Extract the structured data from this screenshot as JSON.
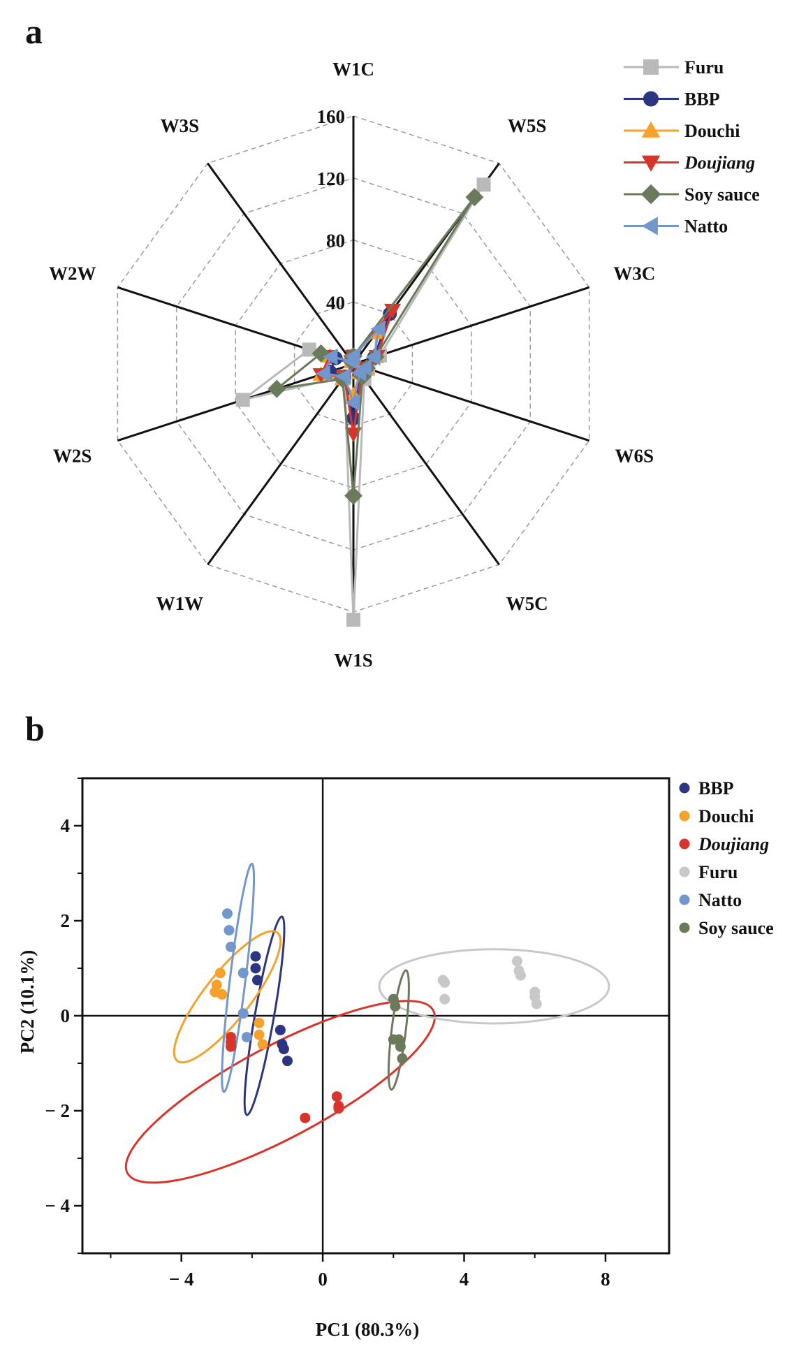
{
  "panel_a": {
    "label": "a"
  },
  "panel_b": {
    "label": "b"
  },
  "chart_data": [
    {
      "type": "radar",
      "axes": [
        "W1C",
        "W5S",
        "W3C",
        "W6S",
        "W5C",
        "W1S",
        "W1W",
        "W2S",
        "W2W",
        "W3S"
      ],
      "r_ticks": [
        40,
        80,
        120,
        160
      ],
      "r_max": 160,
      "gridlines": "dashed",
      "legend_position": "top-right",
      "series": [
        {
          "name": "Furu",
          "italic": false,
          "marker": "square",
          "color": "#b9b9b9",
          "values": [
            5,
            143,
            18,
            10,
            12,
            165,
            10,
            75,
            30,
            2
          ]
        },
        {
          "name": "BBP",
          "italic": false,
          "marker": "circle",
          "color": "#2b3582",
          "values": [
            5,
            40,
            14,
            8,
            7,
            35,
            10,
            16,
            12,
            2
          ]
        },
        {
          "name": "Douchi",
          "italic": false,
          "marker": "triangle-up",
          "color": "#f4a22b",
          "values": [
            5,
            25,
            15,
            9,
            7,
            20,
            12,
            22,
            16,
            2
          ]
        },
        {
          "name": "Doujiang",
          "italic": true,
          "marker": "triangle-down",
          "color": "#d9342a",
          "values": [
            5,
            43,
            16,
            9,
            9,
            45,
            10,
            22,
            16,
            2
          ]
        },
        {
          "name": "Soy sauce",
          "italic": false,
          "marker": "diamond",
          "color": "#6c7a5c",
          "values": [
            5,
            133,
            15,
            9,
            10,
            85,
            12,
            52,
            22,
            2
          ]
        },
        {
          "name": "Natto",
          "italic": false,
          "marker": "triangle-left",
          "color": "#7297cf",
          "values": [
            5,
            28,
            14,
            8,
            7,
            25,
            10,
            20,
            15,
            2
          ]
        }
      ]
    },
    {
      "type": "scatter",
      "xlabel": "PC1 (80.3%)",
      "ylabel": "PC2 (10.1%)",
      "xlim": [
        -6.8,
        9.8
      ],
      "ylim": [
        -5.0,
        5.0
      ],
      "xticks": [
        -4,
        0,
        4,
        8
      ],
      "xtick_labels": [
        "− 4",
        "0",
        "4",
        "8"
      ],
      "yticks": [
        -4,
        -2,
        0,
        2,
        4
      ],
      "ytick_labels": [
        "− 4",
        "− 2",
        "0",
        "2",
        "4"
      ],
      "legend_position": "right",
      "series": [
        {
          "name": "BBP",
          "italic": false,
          "color": "#2b3582",
          "points": [
            [
              -1.9,
              1.25
            ],
            [
              -1.9,
              1.0
            ],
            [
              -1.85,
              0.75
            ],
            [
              -1.2,
              -0.3
            ],
            [
              -1.15,
              -0.6
            ],
            [
              -1.1,
              -0.7
            ],
            [
              -1.0,
              -0.95
            ]
          ],
          "ellipse": {
            "cx": -1.65,
            "cy": 0.0,
            "rx": 2.85,
            "ry": 0.27,
            "angle_deg": -80
          }
        },
        {
          "name": "Douchi",
          "italic": false,
          "color": "#f4a22b",
          "points": [
            [
              -2.9,
              0.9
            ],
            [
              -3.0,
              0.65
            ],
            [
              -3.05,
              0.5
            ],
            [
              -2.85,
              0.45
            ],
            [
              -1.8,
              -0.15
            ],
            [
              -1.8,
              -0.4
            ],
            [
              -1.7,
              -0.6
            ]
          ],
          "ellipse": {
            "cx": -2.7,
            "cy": 0.4,
            "rx": 2.3,
            "ry": 0.65,
            "angle_deg": -52
          }
        },
        {
          "name": "Doujiang",
          "italic": true,
          "color": "#d9342a",
          "points": [
            [
              -2.6,
              -0.45
            ],
            [
              -2.6,
              -0.55
            ],
            [
              -2.6,
              -0.65
            ],
            [
              -0.5,
              -2.15
            ],
            [
              0.4,
              -1.7
            ],
            [
              0.45,
              -1.9
            ],
            [
              0.45,
              -1.95
            ]
          ],
          "ellipse": {
            "cx": -1.2,
            "cy": -1.6,
            "rx": 4.9,
            "ry": 1.3,
            "angle_deg": -28
          }
        },
        {
          "name": "Furu",
          "italic": false,
          "color": "#c8c8c8",
          "points": [
            [
              3.4,
              0.75
            ],
            [
              3.45,
              0.7
            ],
            [
              3.45,
              0.35
            ],
            [
              5.5,
              1.15
            ],
            [
              5.55,
              0.95
            ],
            [
              5.6,
              0.85
            ],
            [
              6.0,
              0.5
            ],
            [
              6.0,
              0.4
            ],
            [
              6.05,
              0.25
            ]
          ],
          "ellipse": {
            "cx": 4.85,
            "cy": 0.62,
            "rx": 3.25,
            "ry": 1.05,
            "angle_deg": 0
          }
        },
        {
          "name": "Natto",
          "italic": false,
          "color": "#7297cf",
          "points": [
            [
              -2.7,
              2.15
            ],
            [
              -2.65,
              1.8
            ],
            [
              -2.6,
              1.45
            ],
            [
              -2.25,
              0.9
            ],
            [
              -2.25,
              0.05
            ],
            [
              -2.15,
              -0.45
            ]
          ],
          "ellipse": {
            "cx": -2.4,
            "cy": 0.8,
            "rx": 3.25,
            "ry": 0.22,
            "angle_deg": -83
          }
        },
        {
          "name": "Soy sauce",
          "italic": false,
          "color": "#6c7a5c",
          "points": [
            [
              2.0,
              0.35
            ],
            [
              2.05,
              0.2
            ],
            [
              2.0,
              -0.5
            ],
            [
              2.15,
              -0.5
            ],
            [
              2.2,
              -0.65
            ],
            [
              2.25,
              -0.9
            ]
          ],
          "ellipse": {
            "cx": 2.15,
            "cy": -0.3,
            "rx": 1.7,
            "ry": 0.2,
            "angle_deg": -83
          }
        }
      ]
    }
  ]
}
